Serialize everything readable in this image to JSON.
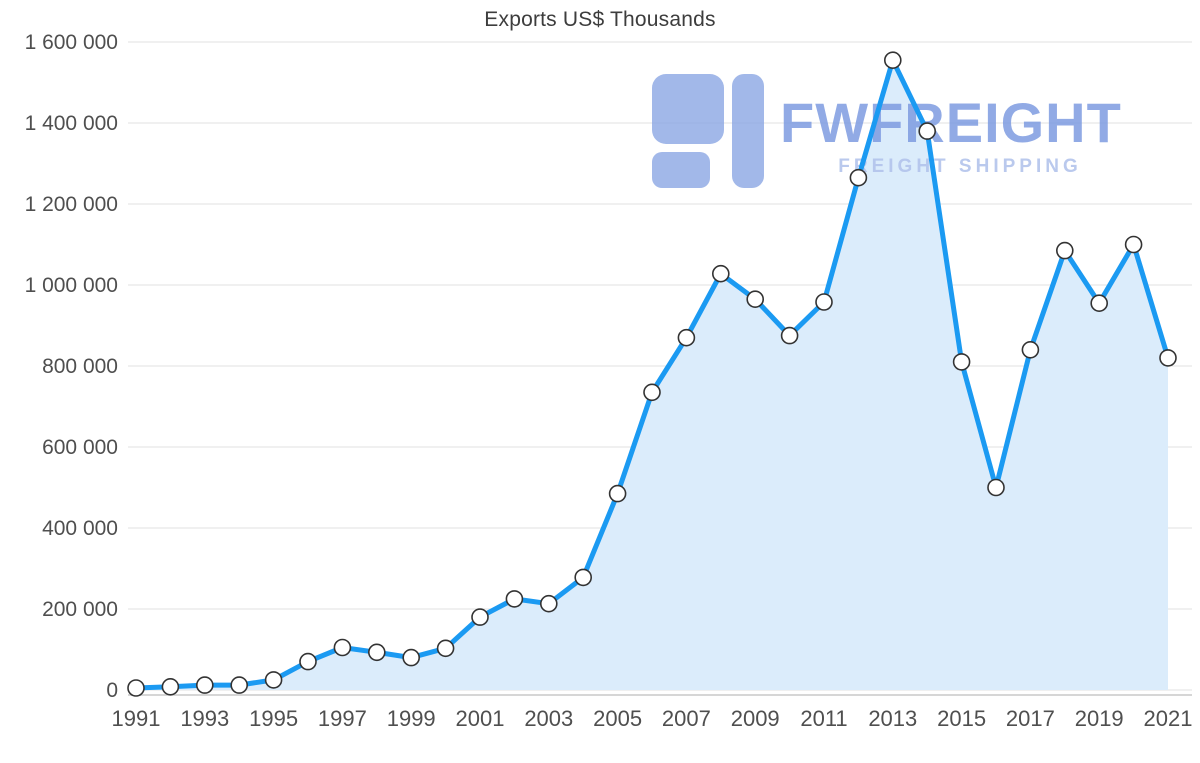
{
  "chart_data": {
    "type": "area",
    "title": "Exports US$ Thousands",
    "x": [
      1991,
      1992,
      1993,
      1994,
      1995,
      1996,
      1997,
      1998,
      1999,
      2000,
      2001,
      2002,
      2003,
      2004,
      2005,
      2006,
      2007,
      2008,
      2009,
      2010,
      2011,
      2012,
      2013,
      2014,
      2015,
      2016,
      2017,
      2018,
      2019,
      2020,
      2021
    ],
    "values": [
      5000,
      8000,
      12000,
      12000,
      25000,
      70000,
      105000,
      93000,
      80000,
      103000,
      180000,
      225000,
      213000,
      278000,
      485000,
      735000,
      870000,
      1028000,
      965000,
      875000,
      958000,
      1265000,
      1555000,
      1380000,
      810000,
      500000,
      840000,
      1085000,
      955000,
      1100000,
      820000
    ],
    "xticks": [
      "1991",
      "1993",
      "1995",
      "1997",
      "1999",
      "2001",
      "2003",
      "2005",
      "2007",
      "2009",
      "2011",
      "2013",
      "2015",
      "2017",
      "2019",
      "2021"
    ],
    "yticks": [
      "0",
      "200 000",
      "400 000",
      "600 000",
      "800 000",
      "1 000 000",
      "1 200 000",
      "1 400 000",
      "1 600 000"
    ],
    "ylim": [
      0,
      1600000
    ],
    "ytick_step": 200000,
    "grid": true,
    "legend": "none",
    "colors": {
      "line": "#1b9af2",
      "fill": "#dbecfb",
      "marker_fill": "#ffffff",
      "marker_stroke": "#333333",
      "gridline": "#e2e2e2",
      "axis_line": "#c9c9c9",
      "tick_text": "#4f4f4f"
    }
  },
  "watermark": {
    "name": "FWFREIGHT",
    "subtitle": "FREIGHT SHIPPING",
    "color": "#7e9ce1",
    "subtitle_color": "#b3c4ec",
    "logo_color": "#8ba6e3"
  }
}
